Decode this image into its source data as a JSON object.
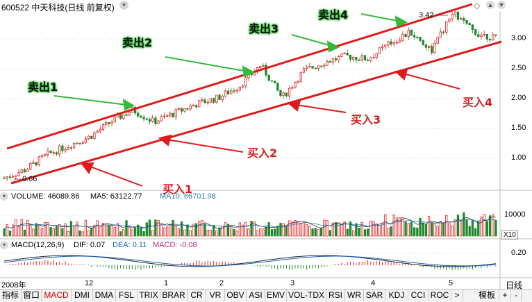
{
  "header": {
    "code_name": "600522 中天科技(日线 前复权)",
    "top_price": "3.42",
    "bottom_price": "0.66"
  },
  "y_axis_main": [
    "3.00",
    "2.50",
    "2.00",
    "1.50",
    "1.00"
  ],
  "annotations": {
    "sell": [
      "卖出1",
      "卖出2",
      "卖出3",
      "卖出4"
    ],
    "buy": [
      "买入1",
      "买入2",
      "买入3",
      "买入4"
    ]
  },
  "volume": {
    "label": "VOLUME: 46089.86",
    "ma5": "MA5: 63122.77",
    "ma10": "MA10: 66701.98",
    "axis_10000": "10000",
    "unit": "X10"
  },
  "macd": {
    "label": "MACD(12,26,9)",
    "dif": "DIF: 0.07",
    "dea": "DEA: 0.11",
    "macd": "MACD: -0.08",
    "axis": "0.20"
  },
  "time_axis": [
    "2008年",
    "12",
    "1",
    "2",
    "3",
    "4",
    "5"
  ],
  "bottom_tabs": [
    "指标",
    "窗口",
    "MACD",
    "DMI",
    "DMA",
    "FSL",
    "TRIX",
    "BRAR",
    "CR",
    "VR",
    "OBV",
    "ASI",
    "EMV",
    "VOL-TDX",
    "RSI",
    "WR",
    "SAR",
    "KDJ",
    "CCI",
    "ROC",
    ">",
    "模板",
    "+",
    "-",
    "日线"
  ],
  "colors": {
    "up": "#e02020",
    "down": "#1f8a2a",
    "channel": "#e01a1a",
    "green_arrow": "#33b93b"
  },
  "chart_data": {
    "type": "candlestick",
    "title": "600522 中天科技(日线 前复权)",
    "ylim": [
      0.55,
      3.55
    ],
    "y_ticks": [
      1.0,
      1.5,
      2.0,
      2.5,
      3.0
    ],
    "x_labels": [
      "2008年",
      "12",
      "1",
      "2",
      "3",
      "4",
      "5"
    ],
    "series": [
      {
        "name": "close_trend",
        "values": [
          0.66,
          0.8,
          1.05,
          1.2,
          1.35,
          1.6,
          1.8,
          1.6,
          1.75,
          1.9,
          2.0,
          2.2,
          2.55,
          2.0,
          2.45,
          2.6,
          2.7,
          2.65,
          2.9,
          3.1,
          2.8,
          3.42,
          3.1,
          3.0
        ]
      }
    ],
    "highs": [
      "3.42"
    ],
    "lows": [
      "0.66"
    ]
  }
}
